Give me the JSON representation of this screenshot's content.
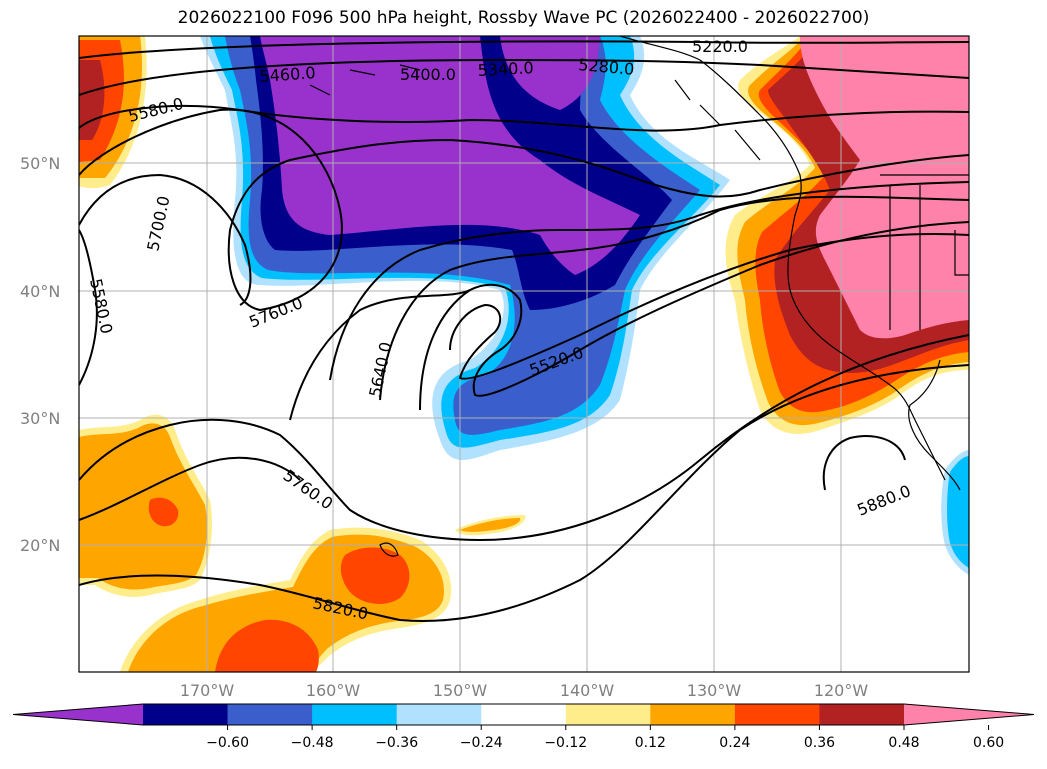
{
  "title": "2026022100 F096 500 hPa height, Rossby Wave PC (2026022400 - 2026022700)",
  "lon_ticks": [
    "170°W",
    "160°W",
    "150°W",
    "140°W",
    "130°W",
    "120°W"
  ],
  "lat_ticks": [
    "50°N",
    "40°N",
    "30°N",
    "20°N"
  ],
  "colorbar": {
    "ticks": [
      "−0.60",
      "−0.48",
      "−0.36",
      "−0.24",
      "−0.12",
      "0.12",
      "0.24",
      "0.36",
      "0.48",
      "0.60"
    ],
    "colors": [
      "#9932cc",
      "#00008b",
      "#3a5fcd",
      "#00bfff",
      "#b0e2ff",
      "#ffffff",
      "#ffec8b",
      "#ffa500",
      "#ff4500",
      "#b22222",
      "#ff82ab"
    ]
  },
  "contour_labels": [
    "5220.0",
    "5280.0",
    "5340.0",
    "5400.0",
    "5460.0",
    "5580.0",
    "5700.0",
    "5580.0",
    "5760.0",
    "5640.0",
    "5520.0",
    "5760.0",
    "5820.0",
    "5880.0"
  ]
}
